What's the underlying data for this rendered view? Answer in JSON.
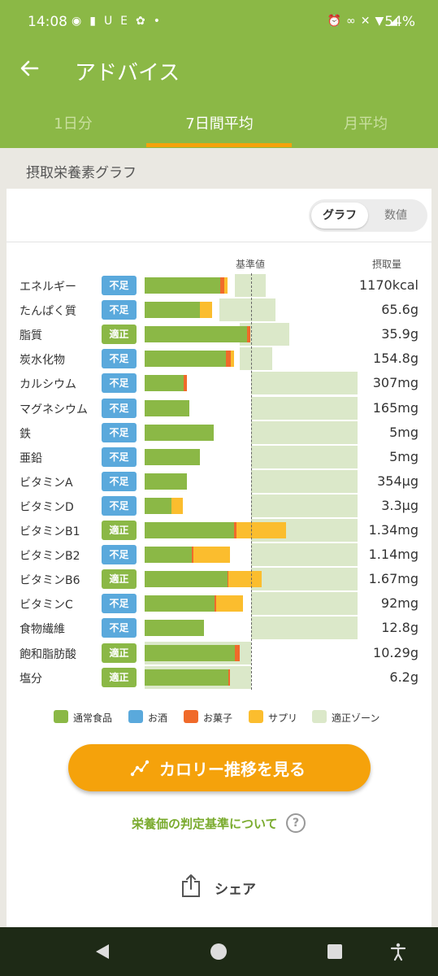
{
  "status_bar": {
    "time": "14:08",
    "notif_text": "UE",
    "battery": "54%"
  },
  "app_bar": {
    "title": "アドバイス",
    "back_icon": "arrow-left-icon"
  },
  "tabs": [
    {
      "label": "1日分",
      "active": false
    },
    {
      "label": "7日間平均",
      "active": true
    },
    {
      "label": "月平均",
      "active": false
    }
  ],
  "section_title": "摂取栄養素グラフ",
  "view_toggle": {
    "graph": "グラフ",
    "numeric": "数値",
    "selected": "graph"
  },
  "chart_headers": {
    "standard": "基準値",
    "intake": "摂取量"
  },
  "colors": {
    "normal_food": "#8bb846",
    "alcohol": "#5aa9dc",
    "snack": "#f06a2a",
    "supplement": "#fbbd2e",
    "zone": "#dbe8c9"
  },
  "chart_data": {
    "type": "bar",
    "orientation": "horizontal",
    "stacked": true,
    "standard_reference": 1.0,
    "categories": [
      "エネルギー",
      "たんぱく質",
      "脂質",
      "炭水化物",
      "カルシウム",
      "マグネシウム",
      "鉄",
      "亜鉛",
      "ビタミンA",
      "ビタミンD",
      "ビタミンB1",
      "ビタミンB2",
      "ビタミンB6",
      "ビタミンC",
      "食物繊維",
      "飽和脂肪酸",
      "塩分"
    ],
    "status": [
      "不足",
      "不足",
      "適正",
      "不足",
      "不足",
      "不足",
      "不足",
      "不足",
      "不足",
      "不足",
      "適正",
      "不足",
      "適正",
      "不足",
      "不足",
      "適正",
      "適正"
    ],
    "intake_labels": [
      "1170kcal",
      "65.6g",
      "35.9g",
      "154.8g",
      "307mg",
      "165mg",
      "5mg",
      "5mg",
      "354μg",
      "3.3μg",
      "1.34mg",
      "1.14mg",
      "1.67mg",
      "92mg",
      "12.8g",
      "10.29g",
      "6.2g"
    ],
    "series": [
      {
        "name": "通常食品",
        "values": [
          0.71,
          0.52,
          0.96,
          0.76,
          0.37,
          0.42,
          0.65,
          0.52,
          0.4,
          0.25,
          0.84,
          0.44,
          0.78,
          0.66,
          0.56,
          0.85,
          0.79
        ]
      },
      {
        "name": "お酒",
        "values": [
          0,
          0,
          0,
          0,
          0,
          0,
          0,
          0,
          0,
          0,
          0,
          0,
          0,
          0,
          0,
          0,
          0
        ]
      },
      {
        "name": "お菓子",
        "values": [
          0.04,
          0,
          0.03,
          0.05,
          0.03,
          0,
          0,
          0,
          0,
          0,
          0.02,
          0.02,
          0.01,
          0.01,
          0,
          0.04,
          0.01
        ]
      },
      {
        "name": "サプリ",
        "values": [
          0.03,
          0.11,
          0,
          0.03,
          0,
          0,
          0,
          0,
          0,
          0.11,
          0.47,
          0.34,
          0.31,
          0.25,
          0,
          0,
          0
        ]
      }
    ],
    "zone": [
      [
        0.85,
        1.14
      ],
      [
        0.7,
        1.23
      ],
      [
        0.89,
        1.36
      ],
      [
        0.89,
        1.2
      ],
      [
        1.0,
        2.0
      ],
      [
        1.0,
        2.0
      ],
      [
        1.0,
        2.0
      ],
      [
        1.0,
        2.0
      ],
      [
        1.0,
        2.0
      ],
      [
        1.0,
        2.0
      ],
      [
        1.0,
        2.0
      ],
      [
        1.0,
        2.0
      ],
      [
        1.0,
        2.0
      ],
      [
        1.0,
        2.0
      ],
      [
        1.0,
        2.0
      ],
      [
        0.0,
        1.0
      ],
      [
        0.0,
        1.0
      ]
    ],
    "legend": [
      "通常食品",
      "お酒",
      "お菓子",
      "サプリ",
      "適正ゾーン"
    ],
    "legend_position": "bottom"
  },
  "calorie_button": {
    "label": "カロリー推移を見る",
    "icon": "trend-chart-icon"
  },
  "criteria_link": "栄養価の判定基準について",
  "share": {
    "label": "シェア",
    "icon": "share-icon"
  }
}
